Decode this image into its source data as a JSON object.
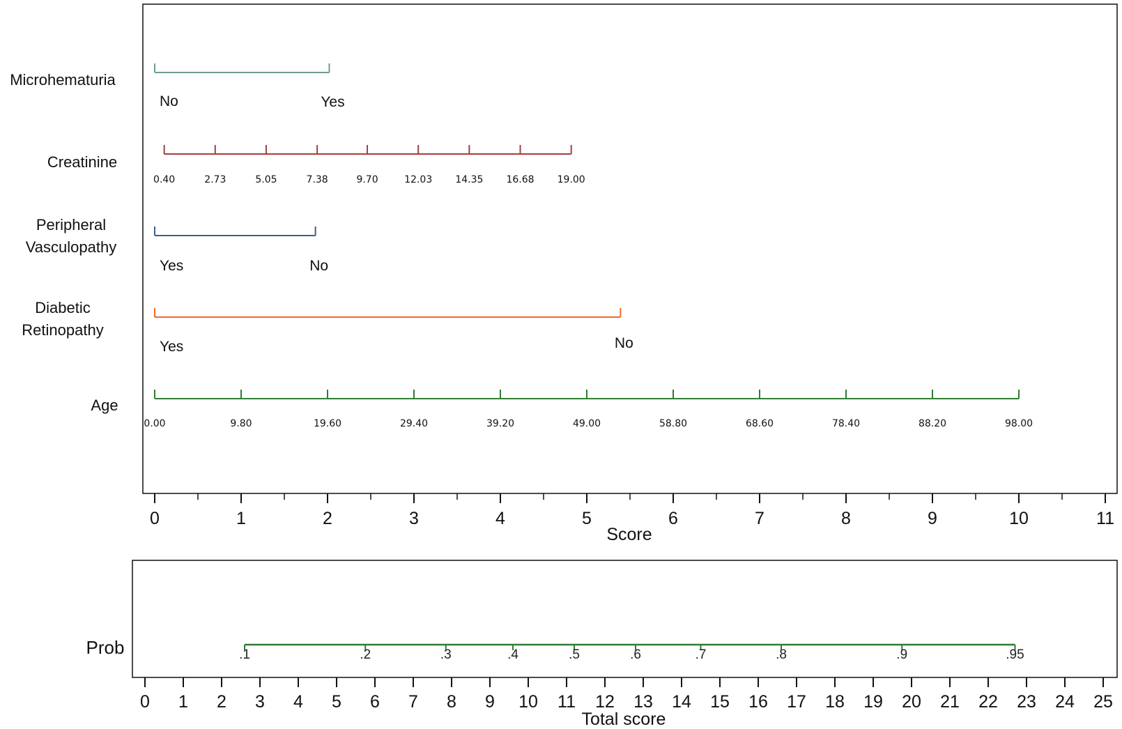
{
  "chart_data": {
    "type": "nomogram",
    "variables": [
      {
        "name": "Microhematuria",
        "color": "#6f9a96",
        "ticks": [
          {
            "label": "No",
            "score": 0
          },
          {
            "label": "Yes",
            "score": 2.02
          }
        ]
      },
      {
        "name": "Creatinine",
        "color": "#a04040",
        "ticks": [
          {
            "label": "0.40",
            "score": 0.11
          },
          {
            "label": "2.73",
            "score": 0.7
          },
          {
            "label": "5.05",
            "score": 1.29
          },
          {
            "label": "7.38",
            "score": 1.88
          },
          {
            "label": "9.70",
            "score": 2.46
          },
          {
            "label": "12.03",
            "score": 3.05
          },
          {
            "label": "14.35",
            "score": 3.64
          },
          {
            "label": "16.68",
            "score": 4.23
          },
          {
            "label": "19.00",
            "score": 4.82
          }
        ]
      },
      {
        "name": "Peripheral Vasculopathy",
        "name_lines": [
          "Peripheral",
          "Vasculopathy"
        ],
        "color": "#3b5f8f",
        "ticks": [
          {
            "label": "Yes",
            "score": 0
          },
          {
            "label": "No",
            "score": 1.86
          }
        ]
      },
      {
        "name": "Diabetic Retinopathy",
        "name_lines": [
          "Diabetic",
          "Retinopathy"
        ],
        "color": "#f06a2a",
        "ticks": [
          {
            "label": "Yes",
            "score": 0
          },
          {
            "label": "No",
            "score": 5.39
          }
        ]
      },
      {
        "name": "Age",
        "color": "#2e7d32",
        "ticks": [
          {
            "label": "0.00",
            "score": 0
          },
          {
            "label": "9.80",
            "score": 1
          },
          {
            "label": "19.60",
            "score": 2
          },
          {
            "label": "29.40",
            "score": 3
          },
          {
            "label": "39.20",
            "score": 4
          },
          {
            "label": "49.00",
            "score": 5
          },
          {
            "label": "58.80",
            "score": 6
          },
          {
            "label": "68.60",
            "score": 7
          },
          {
            "label": "78.40",
            "score": 8
          },
          {
            "label": "88.20",
            "score": 9
          },
          {
            "label": "98.00",
            "score": 10
          }
        ]
      }
    ],
    "score_axis": {
      "title": "Score",
      "range": [
        0,
        11
      ],
      "ticks": [
        "0",
        "1",
        "2",
        "3",
        "4",
        "5",
        "6",
        "7",
        "8",
        "9",
        "10",
        "11"
      ]
    },
    "prob": {
      "name": "Prob",
      "color": "#2e7d32",
      "ticks": [
        {
          "label": ".1",
          "total": 2.6
        },
        {
          "label": ".2",
          "total": 5.75
        },
        {
          "label": ".3",
          "total": 7.85
        },
        {
          "label": ".4",
          "total": 9.6
        },
        {
          "label": ".5",
          "total": 11.2
        },
        {
          "label": ".6",
          "total": 12.8
        },
        {
          "label": ".7",
          "total": 14.5
        },
        {
          "label": ".8",
          "total": 16.6
        },
        {
          "label": ".9",
          "total": 19.75
        },
        {
          "label": ".95",
          "total": 22.7
        }
      ]
    },
    "total_axis": {
      "title": "Total score",
      "range": [
        0,
        25
      ],
      "ticks": [
        "0",
        "1",
        "2",
        "3",
        "4",
        "5",
        "6",
        "7",
        "8",
        "9",
        "10",
        "11",
        "12",
        "13",
        "14",
        "15",
        "16",
        "17",
        "18",
        "19",
        "20",
        "21",
        "22",
        "23",
        "24",
        "25"
      ]
    }
  }
}
